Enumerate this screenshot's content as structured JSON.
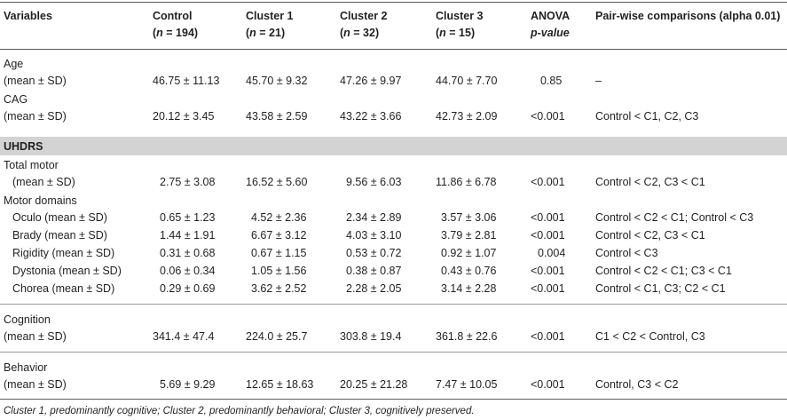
{
  "header": {
    "variables": "Variables",
    "control": "Control",
    "control_n": "(n = 194)",
    "cluster1": "Cluster 1",
    "cluster1_n": "(n = 21)",
    "cluster2": "Cluster 2",
    "cluster2_n": "(n = 32)",
    "cluster3": "Cluster 3",
    "cluster3_n": "(n = 15)",
    "anova": "ANOVA",
    "anova_sub": "p-value",
    "pairwise": "Pair-wise comparisons (alpha 0.01)"
  },
  "age": {
    "label": "Age",
    "sub": "(mean ± SD)",
    "control": "46.75 ± 11.13",
    "c1": "45.70 ± 9.32",
    "c2": "47.26 ± 9.97",
    "c3": "44.70 ± 7.70",
    "p": "0.85",
    "pw": "–"
  },
  "cag": {
    "label": "CAG",
    "sub": "(mean ± SD)",
    "control": "20.12 ± 3.45",
    "c1": "43.58 ± 2.59",
    "c2": "43.22 ± 3.66",
    "c3": "42.73 ± 2.09",
    "p": "<0.001",
    "pw": "Control < C1, C2, C3"
  },
  "uhdrs_label": "UHDRS",
  "total_motor": {
    "label": "Total motor",
    "sub": "(mean ± SD)",
    "control": "2.75 ± 3.08",
    "c1": "16.52 ± 5.60",
    "c2": "9.56 ± 6.03",
    "c3": "11.86 ± 6.78",
    "p": "<0.001",
    "pw": "Control < C2, C3 < C1"
  },
  "motor_domains_label": "Motor domains",
  "oculo": {
    "label": "Oculo (mean ± SD)",
    "control": "0.65 ± 1.23",
    "c1": "4.52 ± 2.36",
    "c2": "2.34 ± 2.89",
    "c3": "3.57 ± 3.06",
    "p": "<0.001",
    "pw": "Control < C2 < C1; Control < C3"
  },
  "brady": {
    "label": "Brady (mean ± SD)",
    "control": "1.44 ± 1.91",
    "c1": "6.67 ± 3.12",
    "c2": "4.03 ± 3.10",
    "c3": "3.79 ± 2.81",
    "p": "<0.001",
    "pw": "Control < C2, C3 < C1"
  },
  "rigidity": {
    "label": "Rigidity (mean ± SD)",
    "control": "0.31 ± 0.68",
    "c1": "0.67 ± 1.15",
    "c2": "0.53 ± 0.72",
    "c3": "0.92 ± 1.07",
    "p": "0.004",
    "pw": "Control < C3"
  },
  "dystonia": {
    "label": "Dystonia (mean ± SD)",
    "control": "0.06 ± 0.34",
    "c1": "1.05 ± 1.56",
    "c2": "0.38 ± 0.87",
    "c3": "0.43 ± 0.76",
    "p": "<0.001",
    "pw": "Control < C2 < C1; C3 < C1"
  },
  "chorea": {
    "label": "Chorea (mean ± SD)",
    "control": "0.29 ± 0.69",
    "c1": "3.62 ± 2.52",
    "c2": "2.28 ± 2.05",
    "c3": "3.14 ± 2.28",
    "p": "<0.001",
    "pw": "Control < C1, C3; C2 < C1"
  },
  "cognition": {
    "label": "Cognition",
    "sub": "(mean ± SD)",
    "control": "341.4 ± 47.4",
    "c1": "224.0 ± 25.7",
    "c2": "303.8 ± 19.4",
    "c3": "361.8 ± 22.6",
    "p": "<0.001",
    "pw": "C1 < C2 < Control, C3"
  },
  "behavior": {
    "label": "Behavior",
    "sub": "(mean ± SD)",
    "control": "5.69 ± 9.29",
    "c1": "12.65 ± 18.63",
    "c2": "20.25 ± 21.28",
    "c3": "7.47 ± 10.05",
    "p": "<0.001",
    "pw": "Control, C3 < C2"
  },
  "footnote": "Cluster 1, predominantly cognitive; Cluster 2, predominantly behavioral; Cluster 3, cognitively preserved."
}
